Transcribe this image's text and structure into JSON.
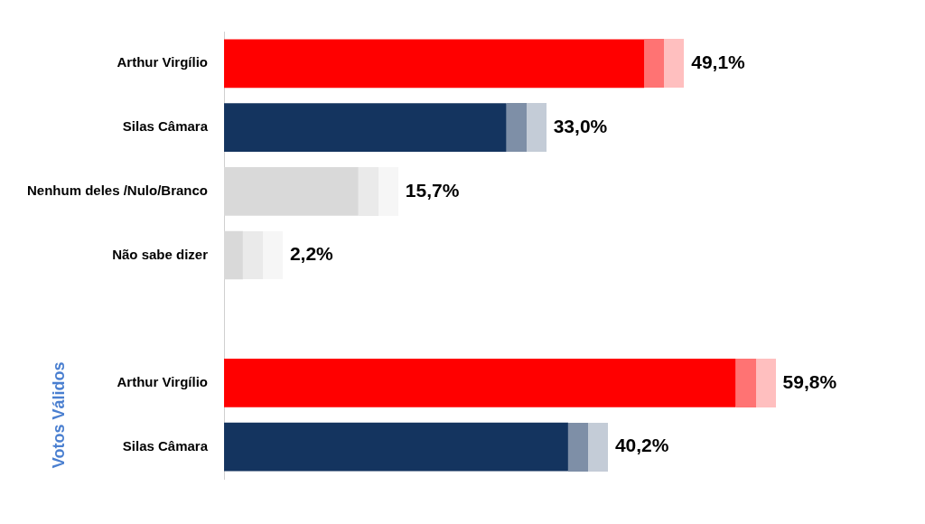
{
  "chart_data": {
    "type": "bar",
    "orientation": "horizontal",
    "categories": [
      "Arthur Virgílio",
      "Silas Câmara",
      "Nenhum deles /Nulo/Branco",
      "Não sabe dizer",
      null,
      "Arthur Virgílio",
      "Silas Câmara"
    ],
    "series": [
      {
        "colors": [
          "#ff0000",
          "#14345f",
          "#d9d9d9",
          "#d9d9d9",
          null,
          "#ff0000",
          "#14345f"
        ],
        "values": [
          49.1,
          33.0,
          15.7,
          2.2,
          null,
          59.8,
          40.2
        ],
        "value_labels": [
          "49,1%",
          "33,0%",
          "15,7%",
          "2,2%",
          null,
          "59,8%",
          "40,2%"
        ]
      }
    ],
    "annotations": [
      "Votos Válidos"
    ],
    "tick_labels": "y",
    "grid": false,
    "legend": false
  }
}
